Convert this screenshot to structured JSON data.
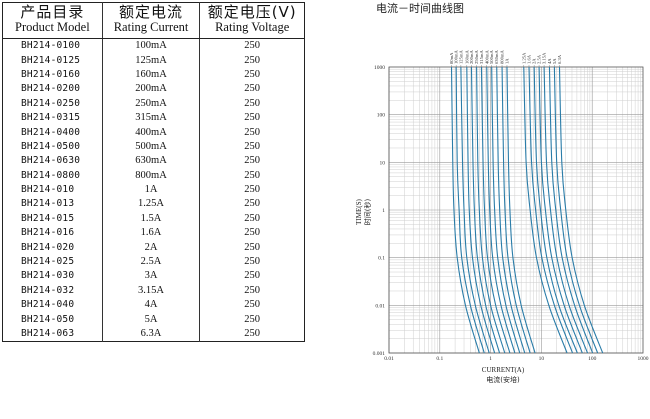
{
  "table": {
    "headers": [
      {
        "cn": "产品目录",
        "en": "Product Model"
      },
      {
        "cn": "额定电流",
        "en": "Rating Current"
      },
      {
        "cn": "额定电压(V)",
        "en": "Rating Voltage"
      }
    ],
    "rows": [
      [
        "BH214-0100",
        "100mA",
        "250"
      ],
      [
        "BH214-0125",
        "125mA",
        "250"
      ],
      [
        "BH214-0160",
        "160mA",
        "250"
      ],
      [
        "BH214-0200",
        "200mA",
        "250"
      ],
      [
        "BH214-0250",
        "250mA",
        "250"
      ],
      [
        "BH214-0315",
        "315mA",
        "250"
      ],
      [
        "BH214-0400",
        "400mA",
        "250"
      ],
      [
        "BH214-0500",
        "500mA",
        "250"
      ],
      [
        "BH214-0630",
        "630mA",
        "250"
      ],
      [
        "BH214-0800",
        "800mA",
        "250"
      ],
      [
        "BH214-010",
        "1A",
        "250"
      ],
      [
        "BH214-013",
        "1.25A",
        "250"
      ],
      [
        "BH214-015",
        "1.5A",
        "250"
      ],
      [
        "BH214-016",
        "1.6A",
        "250"
      ],
      [
        "BH214-020",
        "2A",
        "250"
      ],
      [
        "BH214-025",
        "2.5A",
        "250"
      ],
      [
        "BH214-030",
        "3A",
        "250"
      ],
      [
        "BH214-032",
        "3.15A",
        "250"
      ],
      [
        "BH214-040",
        "4A",
        "250"
      ],
      [
        "BH214-050",
        "5A",
        "250"
      ],
      [
        "BH214-063",
        "6.3A",
        "250"
      ]
    ]
  },
  "chart_data": {
    "type": "line",
    "title": "电流－时间曲线图",
    "xlabel": "CURRENT(A)",
    "xlabel_cn": "电流(安培)",
    "ylabel": "TIME(S)",
    "ylabel_cn": "时间(秒)",
    "xscale": "log",
    "yscale": "log",
    "xlim": [
      0.01,
      1000
    ],
    "ylim": [
      0.001,
      1000
    ],
    "x_ticks": [
      "0.01",
      "0.1",
      "1",
      "10",
      "100",
      "1000"
    ],
    "y_ticks": [
      "1000",
      "100",
      "10",
      "1",
      "0.1",
      "0.01",
      "0.001"
    ],
    "grid": true,
    "line_color": "#2a7ca8",
    "series": [
      {
        "name": "80mA",
        "values": [
          [
            0.17,
            1000
          ],
          [
            0.18,
            10
          ],
          [
            0.19,
            1
          ],
          [
            0.22,
            0.1
          ],
          [
            0.32,
            0.01
          ],
          [
            0.6,
            0.001
          ]
        ]
      },
      {
        "name": "100mA",
        "values": [
          [
            0.21,
            1000
          ],
          [
            0.22,
            10
          ],
          [
            0.24,
            1
          ],
          [
            0.27,
            0.1
          ],
          [
            0.4,
            0.01
          ],
          [
            0.75,
            0.001
          ]
        ]
      },
      {
        "name": "125mA",
        "values": [
          [
            0.26,
            1000
          ],
          [
            0.28,
            10
          ],
          [
            0.3,
            1
          ],
          [
            0.34,
            0.1
          ],
          [
            0.5,
            0.01
          ],
          [
            0.94,
            0.001
          ]
        ]
      },
      {
        "name": "160mA",
        "values": [
          [
            0.34,
            1000
          ],
          [
            0.36,
            10
          ],
          [
            0.38,
            1
          ],
          [
            0.44,
            0.1
          ],
          [
            0.64,
            0.01
          ],
          [
            1.2,
            0.001
          ]
        ]
      },
      {
        "name": "200mA",
        "values": [
          [
            0.42,
            1000
          ],
          [
            0.45,
            10
          ],
          [
            0.48,
            1
          ],
          [
            0.55,
            0.1
          ],
          [
            0.8,
            0.01
          ],
          [
            1.5,
            0.001
          ]
        ]
      },
      {
        "name": "250mA",
        "values": [
          [
            0.53,
            1000
          ],
          [
            0.56,
            10
          ],
          [
            0.6,
            1
          ],
          [
            0.69,
            0.1
          ],
          [
            1.0,
            0.01
          ],
          [
            1.9,
            0.001
          ]
        ]
      },
      {
        "name": "315mA",
        "values": [
          [
            0.66,
            1000
          ],
          [
            0.71,
            10
          ],
          [
            0.76,
            1
          ],
          [
            0.87,
            0.1
          ],
          [
            1.26,
            0.01
          ],
          [
            2.4,
            0.001
          ]
        ]
      },
      {
        "name": "400mA",
        "values": [
          [
            0.84,
            1000
          ],
          [
            0.9,
            10
          ],
          [
            0.96,
            1
          ],
          [
            1.1,
            0.1
          ],
          [
            1.6,
            0.01
          ],
          [
            3.0,
            0.001
          ]
        ]
      },
      {
        "name": "500mA",
        "values": [
          [
            1.05,
            1000
          ],
          [
            1.12,
            10
          ],
          [
            1.2,
            1
          ],
          [
            1.38,
            0.1
          ],
          [
            2.0,
            0.01
          ],
          [
            3.75,
            0.001
          ]
        ]
      },
      {
        "name": "630mA",
        "values": [
          [
            1.32,
            1000
          ],
          [
            1.41,
            10
          ],
          [
            1.51,
            1
          ],
          [
            1.73,
            0.1
          ],
          [
            2.52,
            0.01
          ],
          [
            4.7,
            0.001
          ]
        ]
      },
      {
        "name": "800mA",
        "values": [
          [
            1.68,
            1000
          ],
          [
            1.8,
            10
          ],
          [
            1.92,
            1
          ],
          [
            2.2,
            0.1
          ],
          [
            3.2,
            0.01
          ],
          [
            6.0,
            0.001
          ]
        ]
      },
      {
        "name": "1A",
        "values": [
          [
            2.1,
            1000
          ],
          [
            2.25,
            10
          ],
          [
            2.4,
            1
          ],
          [
            2.75,
            0.1
          ],
          [
            4.0,
            0.01
          ],
          [
            7.5,
            0.001
          ]
        ]
      },
      {
        "name": "1.25A",
        "values": [
          [
            4.5,
            1000
          ],
          [
            5.0,
            10
          ],
          [
            6.0,
            1
          ],
          [
            8.0,
            0.1
          ],
          [
            14,
            0.01
          ],
          [
            32,
            0.001
          ]
        ]
      },
      {
        "name": "1.6A",
        "values": [
          [
            5.7,
            1000
          ],
          [
            6.4,
            10
          ],
          [
            7.7,
            1
          ],
          [
            10.2,
            0.1
          ],
          [
            18,
            0.01
          ],
          [
            41,
            0.001
          ]
        ]
      },
      {
        "name": "2A",
        "values": [
          [
            7.2,
            1000
          ],
          [
            8.0,
            10
          ],
          [
            9.6,
            1
          ],
          [
            12.8,
            0.1
          ],
          [
            22,
            0.01
          ],
          [
            51,
            0.001
          ]
        ]
      },
      {
        "name": "2.5A",
        "values": [
          [
            9.0,
            1000
          ],
          [
            10,
            10
          ],
          [
            12,
            1
          ],
          [
            16,
            0.1
          ],
          [
            28,
            0.01
          ],
          [
            64,
            0.001
          ]
        ]
      },
      {
        "name": "3.15A",
        "values": [
          [
            11.3,
            1000
          ],
          [
            12.6,
            10
          ],
          [
            15.1,
            1
          ],
          [
            20.2,
            0.1
          ],
          [
            35,
            0.01
          ],
          [
            81,
            0.001
          ]
        ]
      },
      {
        "name": "4A",
        "values": [
          [
            14.4,
            1000
          ],
          [
            16,
            10
          ],
          [
            19.2,
            1
          ],
          [
            25.6,
            0.1
          ],
          [
            45,
            0.01
          ],
          [
            102,
            0.001
          ]
        ]
      },
      {
        "name": "5A",
        "values": [
          [
            18,
            1000
          ],
          [
            20,
            10
          ],
          [
            24,
            1
          ],
          [
            32,
            0.1
          ],
          [
            56,
            0.01
          ],
          [
            128,
            0.001
          ]
        ]
      },
      {
        "name": "6.3A",
        "values": [
          [
            22.7,
            1000
          ],
          [
            25.2,
            10
          ],
          [
            30.2,
            1
          ],
          [
            40.3,
            0.1
          ],
          [
            70,
            0.01
          ],
          [
            161,
            0.001
          ]
        ]
      }
    ]
  }
}
